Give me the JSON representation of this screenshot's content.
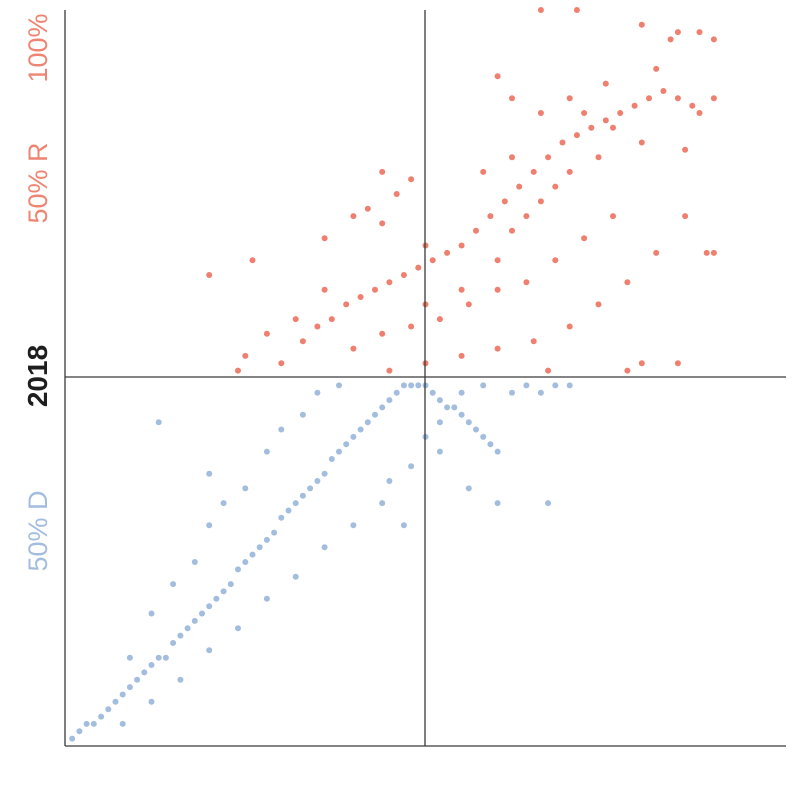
{
  "labels": {
    "top": "100%",
    "r": "50% R",
    "year": "2018",
    "d": "50% D"
  },
  "colors": {
    "republican": "#ef7f6e",
    "democrat": "#a3bddf",
    "axis": "#3a3a3a"
  },
  "chart_data": {
    "type": "scatter",
    "title": "",
    "xlabel": "",
    "ylabel": "2018",
    "xlim": [
      0,
      100
    ],
    "ylim": [
      0,
      100
    ],
    "reference_lines": {
      "x": 50,
      "y": 50
    },
    "grid": false,
    "legend": "none",
    "series": [
      {
        "color": "#a3bddf",
        "description_points": [
          [
            1,
            1
          ],
          [
            2,
            2
          ],
          [
            3,
            3
          ],
          [
            4,
            3
          ],
          [
            5,
            4
          ],
          [
            6,
            5
          ],
          [
            7,
            6
          ],
          [
            8,
            7
          ],
          [
            9,
            8
          ],
          [
            10,
            9
          ],
          [
            11,
            10
          ],
          [
            12,
            11
          ],
          [
            13,
            12
          ],
          [
            14,
            12
          ],
          [
            15,
            14
          ],
          [
            16,
            15
          ],
          [
            17,
            16
          ],
          [
            18,
            17
          ],
          [
            19,
            18
          ],
          [
            20,
            19
          ],
          [
            21,
            20
          ],
          [
            22,
            21
          ],
          [
            23,
            22
          ],
          [
            24,
            24
          ],
          [
            25,
            25
          ],
          [
            26,
            26
          ],
          [
            27,
            27
          ],
          [
            28,
            28
          ],
          [
            29,
            29
          ],
          [
            30,
            31
          ],
          [
            31,
            32
          ],
          [
            32,
            33
          ],
          [
            33,
            34
          ],
          [
            34,
            35
          ],
          [
            35,
            36
          ],
          [
            36,
            37
          ],
          [
            37,
            39
          ],
          [
            38,
            40
          ],
          [
            39,
            41
          ],
          [
            40,
            42
          ],
          [
            41,
            43
          ],
          [
            42,
            44
          ],
          [
            43,
            45
          ],
          [
            44,
            46
          ],
          [
            45,
            47
          ],
          [
            46,
            48
          ],
          [
            47,
            49
          ],
          [
            48,
            49
          ],
          [
            49,
            49
          ],
          [
            50,
            49
          ],
          [
            51,
            48
          ],
          [
            52,
            47
          ],
          [
            53,
            46
          ],
          [
            54,
            46
          ],
          [
            55,
            45
          ],
          [
            56,
            44
          ],
          [
            57,
            43
          ],
          [
            58,
            42
          ],
          [
            59,
            41
          ],
          [
            60,
            40
          ],
          [
            12,
            18
          ],
          [
            15,
            22
          ],
          [
            18,
            25
          ],
          [
            20,
            30
          ],
          [
            22,
            33
          ],
          [
            25,
            35
          ],
          [
            28,
            40
          ],
          [
            30,
            43
          ],
          [
            33,
            45
          ],
          [
            35,
            48
          ],
          [
            8,
            3
          ],
          [
            12,
            6
          ],
          [
            16,
            9
          ],
          [
            20,
            13
          ],
          [
            24,
            16
          ],
          [
            28,
            20
          ],
          [
            32,
            23
          ],
          [
            36,
            27
          ],
          [
            40,
            30
          ],
          [
            44,
            33
          ],
          [
            48,
            38
          ],
          [
            50,
            42
          ],
          [
            52,
            44
          ],
          [
            55,
            48
          ],
          [
            58,
            49
          ],
          [
            62,
            48
          ],
          [
            64,
            49
          ],
          [
            66,
            48
          ],
          [
            68,
            49
          ],
          [
            70,
            49
          ],
          [
            13,
            44
          ],
          [
            20,
            37
          ],
          [
            38,
            49
          ],
          [
            45,
            36
          ],
          [
            47,
            30
          ],
          [
            52,
            40
          ],
          [
            56,
            35
          ],
          [
            60,
            33
          ],
          [
            67,
            33
          ],
          [
            9,
            12
          ]
        ]
      },
      {
        "color": "#ef7f6e",
        "description_points": [
          [
            30,
            52
          ],
          [
            33,
            55
          ],
          [
            35,
            57
          ],
          [
            37,
            58
          ],
          [
            39,
            60
          ],
          [
            41,
            61
          ],
          [
            43,
            62
          ],
          [
            45,
            63
          ],
          [
            47,
            64
          ],
          [
            49,
            65
          ],
          [
            51,
            66
          ],
          [
            53,
            67
          ],
          [
            55,
            68
          ],
          [
            57,
            70
          ],
          [
            59,
            72
          ],
          [
            61,
            74
          ],
          [
            63,
            76
          ],
          [
            65,
            78
          ],
          [
            67,
            80
          ],
          [
            69,
            82
          ],
          [
            71,
            83
          ],
          [
            73,
            84
          ],
          [
            75,
            85
          ],
          [
            77,
            86
          ],
          [
            79,
            87
          ],
          [
            81,
            88
          ],
          [
            83,
            89
          ],
          [
            85,
            88
          ],
          [
            87,
            87
          ],
          [
            88,
            86
          ],
          [
            40,
            54
          ],
          [
            44,
            56
          ],
          [
            48,
            57
          ],
          [
            52,
            58
          ],
          [
            56,
            60
          ],
          [
            60,
            62
          ],
          [
            64,
            63
          ],
          [
            68,
            66
          ],
          [
            72,
            69
          ],
          [
            76,
            72
          ],
          [
            45,
            51
          ],
          [
            50,
            52
          ],
          [
            55,
            53
          ],
          [
            60,
            54
          ],
          [
            65,
            55
          ],
          [
            70,
            57
          ],
          [
            74,
            60
          ],
          [
            78,
            63
          ],
          [
            82,
            67
          ],
          [
            86,
            72
          ],
          [
            50,
            60
          ],
          [
            55,
            62
          ],
          [
            60,
            66
          ],
          [
            62,
            70
          ],
          [
            64,
            72
          ],
          [
            66,
            74
          ],
          [
            68,
            76
          ],
          [
            70,
            78
          ],
          [
            74,
            80
          ],
          [
            80,
            82
          ],
          [
            20,
            64
          ],
          [
            26,
            66
          ],
          [
            36,
            69
          ],
          [
            44,
            71
          ],
          [
            50,
            68
          ],
          [
            58,
            78
          ],
          [
            62,
            80
          ],
          [
            66,
            86
          ],
          [
            70,
            88
          ],
          [
            75,
            90
          ],
          [
            82,
            92
          ],
          [
            84,
            96
          ],
          [
            88,
            97
          ],
          [
            90,
            88
          ],
          [
            89,
            67
          ],
          [
            90,
            67
          ],
          [
            78,
            51
          ],
          [
            80,
            52
          ],
          [
            85,
            52
          ],
          [
            67,
            51
          ],
          [
            48,
            77
          ],
          [
            46,
            75
          ],
          [
            44,
            78
          ],
          [
            42,
            73
          ],
          [
            40,
            72
          ],
          [
            36,
            62
          ],
          [
            32,
            58
          ],
          [
            28,
            56
          ],
          [
            25,
            53
          ],
          [
            24,
            51
          ],
          [
            66,
            100
          ],
          [
            71,
            100
          ],
          [
            80,
            98
          ],
          [
            85,
            97
          ],
          [
            90,
            96
          ],
          [
            60,
            91
          ],
          [
            62,
            88
          ],
          [
            72,
            86
          ],
          [
            76,
            84
          ],
          [
            86,
            81
          ]
        ]
      }
    ]
  }
}
